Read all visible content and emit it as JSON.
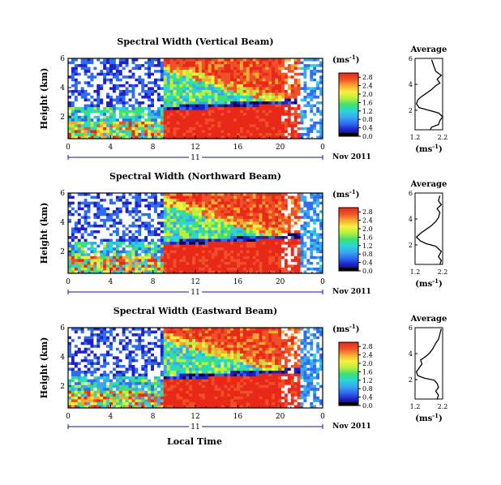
{
  "figure": {
    "xlabel": "Local Time",
    "colors": {
      "scale": [
        "#1a0050",
        "#2020c8",
        "#2e6cf0",
        "#3aa8f0",
        "#28d8d8",
        "#40e070",
        "#b8f040",
        "#f8f040",
        "#f8a830",
        "#f05028",
        "#e82818"
      ],
      "missing": "#ffffff",
      "frame": "#000000",
      "axis_blue": "#1010a0"
    }
  },
  "chart_data": [
    {
      "type": "heatmap",
      "title": "Spectral Width (Vertical Beam)",
      "ylabel": "Height (km)",
      "x": {
        "ticks": [
          "0",
          "4",
          "8",
          "12",
          "16",
          "20",
          "0"
        ],
        "range_hours": [
          0,
          24
        ]
      },
      "y": {
        "ticks": [
          "2",
          "4",
          "6"
        ],
        "range_km": [
          0.5,
          6
        ]
      },
      "date_axis": {
        "day": "11",
        "label": "Nov 2011"
      },
      "colorbar": {
        "unit": "(ms",
        "exp": "-1",
        "ticks": [
          "0.0",
          "0.4",
          "0.8",
          "1.2",
          "1.6",
          "2.0",
          "2.4",
          "2.8"
        ],
        "range": [
          0,
          3.0
        ]
      },
      "average": {
        "title": "Average",
        "xlabel": "(ms",
        "xexp": "-1",
        "xticks": [
          "1.2",
          "2.2"
        ],
        "xlim": [
          1.2,
          2.2
        ],
        "yticks": [
          "2",
          "4",
          "6"
        ],
        "ylim": [
          0.5,
          6
        ],
        "profile": [
          [
            1.75,
            0.5
          ],
          [
            1.8,
            0.7
          ],
          [
            2.05,
            0.9
          ],
          [
            2.1,
            1.2
          ],
          [
            2.2,
            1.5
          ],
          [
            2.05,
            1.8
          ],
          [
            1.7,
            2.0
          ],
          [
            1.35,
            2.2
          ],
          [
            1.25,
            2.5
          ],
          [
            1.3,
            2.8
          ],
          [
            1.4,
            3.0
          ],
          [
            1.6,
            3.3
          ],
          [
            1.8,
            3.6
          ],
          [
            1.95,
            3.9
          ],
          [
            2.1,
            4.1
          ],
          [
            2.0,
            4.4
          ],
          [
            2.15,
            4.7
          ],
          [
            1.95,
            5.0
          ],
          [
            1.9,
            5.3
          ],
          [
            1.85,
            5.6
          ],
          [
            1.8,
            5.9
          ]
        ]
      }
    },
    {
      "type": "heatmap",
      "title": "Spectral Width (Northward Beam)",
      "ylabel": "Height (km)",
      "x": {
        "ticks": [
          "0",
          "4",
          "8",
          "12",
          "16",
          "20",
          "0"
        ],
        "range_hours": [
          0,
          24
        ]
      },
      "y": {
        "ticks": [
          "2",
          "4",
          "6"
        ],
        "range_km": [
          0.5,
          6
        ]
      },
      "date_axis": {
        "day": "11",
        "label": "Nov 2011"
      },
      "colorbar": {
        "unit": "(ms",
        "exp": "-1",
        "ticks": [
          "0.0",
          "0.4",
          "0.8",
          "1.2",
          "1.6",
          "2.0",
          "2.4",
          "2.8"
        ],
        "range": [
          0,
          3.0
        ]
      },
      "average": {
        "title": "Average",
        "xlabel": "(ms",
        "xexp": "-1",
        "xticks": [
          "1.2",
          "2.2"
        ],
        "xlim": [
          1.2,
          2.2
        ],
        "yticks": [
          "2",
          "4",
          "6"
        ],
        "ylim": [
          0.5,
          6
        ],
        "profile": [
          [
            2.1,
            0.5
          ],
          [
            2.15,
            0.8
          ],
          [
            2.05,
            1.1
          ],
          [
            2.15,
            1.5
          ],
          [
            1.95,
            1.9
          ],
          [
            1.6,
            2.1
          ],
          [
            1.4,
            2.3
          ],
          [
            1.25,
            2.6
          ],
          [
            1.4,
            2.9
          ],
          [
            1.6,
            3.2
          ],
          [
            1.8,
            3.5
          ],
          [
            1.95,
            3.8
          ],
          [
            2.05,
            4.1
          ],
          [
            2.1,
            4.5
          ],
          [
            2.0,
            4.8
          ],
          [
            2.15,
            5.1
          ],
          [
            2.05,
            5.4
          ],
          [
            2.1,
            5.8
          ]
        ]
      }
    },
    {
      "type": "heatmap",
      "title": "Spectral Width (Eastward Beam)",
      "ylabel": "Height (km)",
      "x": {
        "ticks": [
          "0",
          "4",
          "8",
          "12",
          "16",
          "20",
          "0"
        ],
        "range_hours": [
          0,
          24
        ]
      },
      "y": {
        "ticks": [
          "2",
          "4",
          "6"
        ],
        "range_km": [
          0.5,
          6
        ]
      },
      "date_axis": {
        "day": "11",
        "label": "Nov 2011"
      },
      "colorbar": {
        "unit": "(ms",
        "exp": "-1",
        "ticks": [
          "0.0",
          "0.4",
          "0.8",
          "1.2",
          "1.6",
          "2.0",
          "2.4",
          "2.8"
        ],
        "range": [
          0,
          3.0
        ]
      },
      "average": {
        "title": "Average",
        "xlabel": "(ms",
        "xexp": "-1",
        "xticks": [
          "1.2",
          "2.2"
        ],
        "xlim": [
          1.2,
          2.2
        ],
        "yticks": [
          "2",
          "4",
          "6"
        ],
        "ylim": [
          0.5,
          6
        ],
        "profile": [
          [
            2.0,
            0.5
          ],
          [
            2.05,
            0.8
          ],
          [
            1.95,
            1.1
          ],
          [
            2.05,
            1.4
          ],
          [
            2.0,
            1.7
          ],
          [
            1.9,
            1.95
          ],
          [
            1.55,
            2.1
          ],
          [
            1.3,
            2.3
          ],
          [
            1.25,
            2.6
          ],
          [
            1.35,
            2.9
          ],
          [
            1.45,
            3.2
          ],
          [
            1.4,
            3.5
          ],
          [
            1.6,
            3.8
          ],
          [
            1.75,
            4.1
          ],
          [
            1.85,
            4.4
          ],
          [
            1.95,
            4.8
          ],
          [
            2.05,
            5.1
          ],
          [
            2.1,
            5.5
          ],
          [
            2.15,
            5.9
          ]
        ]
      }
    }
  ]
}
